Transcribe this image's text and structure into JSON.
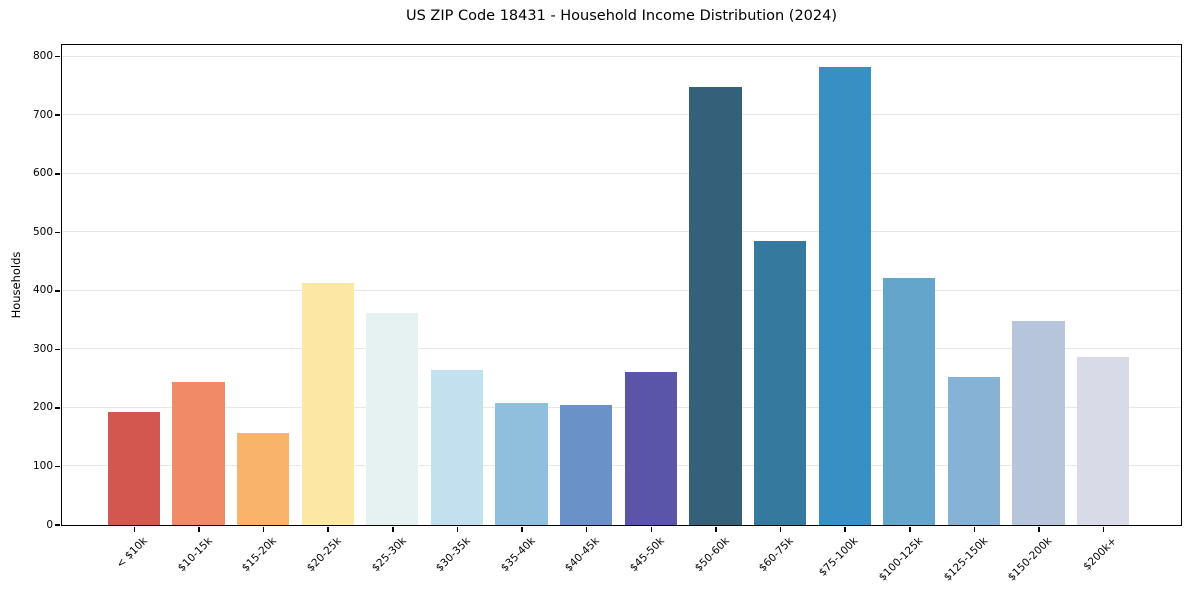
{
  "page": {
    "background_color": "#ffffff"
  },
  "chart_data": {
    "type": "bar",
    "title": "US ZIP Code 18431 - Household Income Distribution (2024)",
    "xlabel": "",
    "ylabel": "Households",
    "categories": [
      "< $10k",
      "$10-15k",
      "$15-20k",
      "$20-25k",
      "$25-30k",
      "$30-35k",
      "$35-40k",
      "$40-45k",
      "$45-50k",
      "$50-60k",
      "$60-75k",
      "$75-100k",
      "$100-125k",
      "$125-150k",
      "$150-200k",
      "$200k+"
    ],
    "values": [
      192,
      244,
      157,
      413,
      362,
      264,
      207,
      204,
      260,
      747,
      484,
      782,
      421,
      252,
      348,
      286
    ],
    "bar_colors": [
      "#d3574e",
      "#f18a66",
      "#fab36b",
      "#fce8a4",
      "#e6f2f1",
      "#c3e0ee",
      "#90bfdd",
      "#6b92c8",
      "#5a55a8",
      "#35607a",
      "#36799f",
      "#388fc1",
      "#64a6cb",
      "#86b3d5",
      "#b6c5dc",
      "#d8dae8"
    ],
    "ylim": [
      0,
      820
    ],
    "yticks": [
      0,
      100,
      200,
      300,
      400,
      500,
      600,
      700,
      800
    ],
    "grid": "horizontal",
    "grid_color": "#e7e7e7",
    "axis_color": "#000000",
    "text_color": "#000000",
    "x_tick_rotation_deg": 45,
    "legend": "none"
  }
}
